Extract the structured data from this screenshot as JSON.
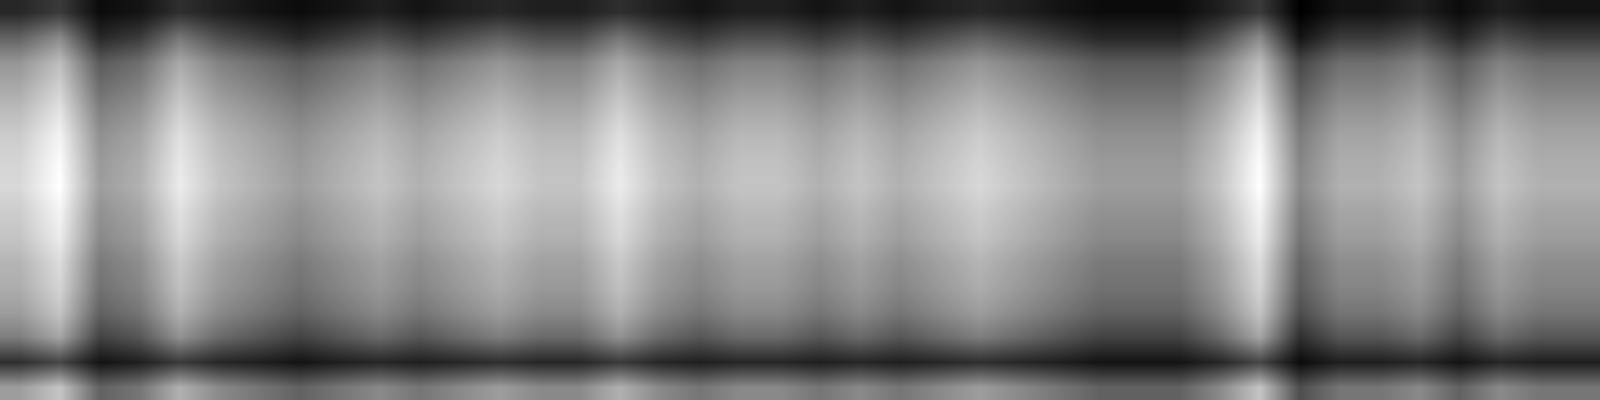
{
  "chart_data": {
    "type": "heatmap",
    "color": "gray",
    "tick_labels": false,
    "cells": [
      [
        10,
        15,
        3,
        5,
        12,
        8,
        5,
        3,
        5,
        8,
        5,
        8,
        10,
        8,
        8,
        12,
        8,
        5,
        8,
        8,
        5,
        8,
        5,
        8,
        10,
        8,
        5,
        3,
        3,
        3,
        8,
        15,
        0,
        5,
        5,
        8,
        3,
        8,
        5,
        5
      ],
      [
        25,
        35,
        10,
        15,
        30,
        20,
        15,
        10,
        15,
        20,
        15,
        20,
        25,
        20,
        20,
        30,
        20,
        15,
        20,
        20,
        15,
        20,
        15,
        20,
        25,
        20,
        15,
        10,
        10,
        10,
        20,
        35,
        5,
        15,
        15,
        20,
        10,
        20,
        15,
        15
      ],
      [
        38,
        48,
        23,
        28,
        43,
        33,
        28,
        23,
        28,
        33,
        28,
        33,
        38,
        33,
        33,
        43,
        33,
        28,
        33,
        33,
        28,
        33,
        28,
        33,
        38,
        33,
        28,
        23,
        23,
        23,
        33,
        48,
        18,
        28,
        28,
        33,
        23,
        33,
        28,
        28
      ],
      [
        43,
        53,
        28,
        33,
        48,
        38,
        33,
        28,
        33,
        38,
        33,
        38,
        43,
        38,
        38,
        48,
        38,
        33,
        38,
        38,
        33,
        38,
        33,
        38,
        43,
        38,
        33,
        28,
        28,
        28,
        38,
        53,
        23,
        33,
        33,
        38,
        28,
        38,
        33,
        33
      ],
      [
        48,
        58,
        33,
        38,
        53,
        43,
        38,
        33,
        38,
        43,
        38,
        43,
        48,
        43,
        43,
        53,
        43,
        38,
        43,
        43,
        38,
        43,
        38,
        43,
        48,
        43,
        38,
        33,
        33,
        33,
        43,
        58,
        28,
        38,
        38,
        43,
        33,
        43,
        38,
        38
      ],
      [
        52,
        62,
        37,
        42,
        57,
        47,
        42,
        37,
        42,
        47,
        42,
        47,
        52,
        47,
        47,
        57,
        47,
        42,
        47,
        47,
        42,
        47,
        42,
        47,
        52,
        47,
        42,
        37,
        37,
        37,
        47,
        62,
        32,
        42,
        42,
        47,
        37,
        47,
        42,
        42
      ],
      [
        54,
        64,
        39,
        44,
        59,
        49,
        44,
        39,
        44,
        49,
        44,
        49,
        54,
        49,
        49,
        59,
        49,
        44,
        49,
        49,
        44,
        49,
        44,
        49,
        54,
        49,
        44,
        39,
        39,
        39,
        49,
        64,
        34,
        44,
        44,
        49,
        39,
        49,
        44,
        44
      ],
      [
        55,
        65,
        40,
        45,
        60,
        50,
        45,
        40,
        45,
        50,
        45,
        50,
        55,
        50,
        50,
        60,
        50,
        45,
        50,
        50,
        45,
        50,
        45,
        50,
        55,
        50,
        45,
        40,
        40,
        40,
        50,
        65,
        35,
        45,
        45,
        50,
        40,
        50,
        45,
        45
      ],
      [
        52,
        62,
        37,
        42,
        57,
        47,
        42,
        37,
        42,
        47,
        42,
        47,
        52,
        47,
        47,
        57,
        47,
        42,
        47,
        47,
        42,
        47,
        42,
        47,
        52,
        47,
        42,
        37,
        37,
        37,
        47,
        62,
        32,
        42,
        42,
        47,
        37,
        47,
        42,
        42
      ],
      [
        50,
        60,
        35,
        40,
        55,
        45,
        40,
        35,
        40,
        45,
        40,
        45,
        50,
        45,
        45,
        55,
        45,
        40,
        45,
        45,
        40,
        45,
        40,
        45,
        50,
        45,
        40,
        35,
        35,
        35,
        45,
        60,
        30,
        40,
        40,
        45,
        35,
        45,
        40,
        40
      ],
      [
        46,
        56,
        31,
        36,
        51,
        41,
        36,
        31,
        36,
        41,
        36,
        41,
        46,
        41,
        41,
        51,
        41,
        36,
        41,
        41,
        36,
        41,
        36,
        41,
        46,
        41,
        36,
        31,
        31,
        31,
        41,
        56,
        26,
        36,
        36,
        41,
        31,
        41,
        36,
        36
      ],
      [
        44,
        54,
        29,
        34,
        49,
        39,
        34,
        29,
        34,
        39,
        34,
        39,
        44,
        39,
        39,
        49,
        39,
        34,
        39,
        39,
        34,
        39,
        34,
        39,
        44,
        39,
        34,
        29,
        29,
        29,
        39,
        54,
        24,
        34,
        34,
        39,
        29,
        39,
        34,
        34
      ],
      [
        40,
        50,
        25,
        30,
        45,
        35,
        30,
        25,
        30,
        35,
        30,
        35,
        40,
        35,
        35,
        45,
        35,
        30,
        35,
        35,
        30,
        35,
        30,
        35,
        40,
        35,
        30,
        25,
        25,
        25,
        35,
        50,
        20,
        30,
        30,
        35,
        25,
        35,
        30,
        30
      ],
      [
        32,
        42,
        17,
        22,
        37,
        27,
        22,
        17,
        22,
        27,
        22,
        27,
        32,
        27,
        27,
        37,
        27,
        22,
        27,
        27,
        22,
        27,
        22,
        27,
        32,
        27,
        22,
        17,
        17,
        17,
        27,
        42,
        12,
        22,
        22,
        27,
        17,
        27,
        22,
        22
      ],
      [
        12,
        18,
        5,
        8,
        15,
        10,
        8,
        5,
        8,
        10,
        8,
        10,
        12,
        10,
        10,
        15,
        10,
        8,
        10,
        10,
        8,
        10,
        8,
        10,
        12,
        10,
        8,
        5,
        5,
        5,
        10,
        18,
        3,
        8,
        8,
        10,
        5,
        10,
        8,
        8
      ],
      [
        40,
        50,
        25,
        30,
        45,
        35,
        30,
        25,
        30,
        35,
        30,
        35,
        40,
        35,
        35,
        45,
        35,
        30,
        35,
        35,
        30,
        35,
        30,
        35,
        40,
        35,
        30,
        25,
        25,
        25,
        35,
        50,
        20,
        30,
        30,
        35,
        25,
        35,
        30,
        30
      ]
    ]
  }
}
